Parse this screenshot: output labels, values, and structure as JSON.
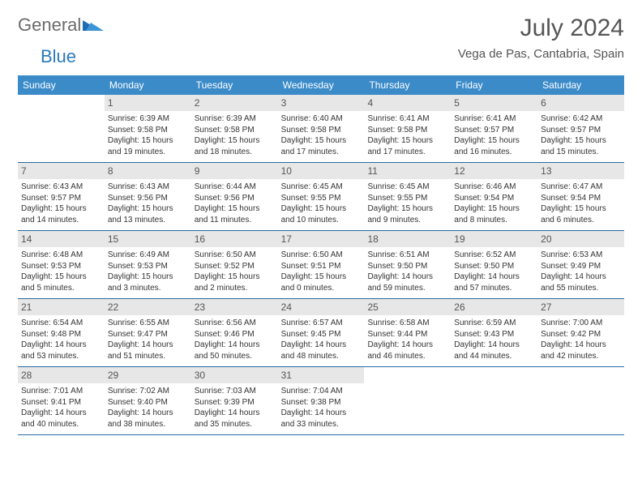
{
  "logo": {
    "text1": "General",
    "text2": "Blue"
  },
  "title": "July 2024",
  "location": "Vega de Pas, Cantabria, Spain",
  "colors": {
    "header_bg": "#3b8bc9",
    "daynum_bg": "#e7e7e7",
    "week_border": "#2a6aa0",
    "text": "#333333",
    "title_text": "#555555"
  },
  "weekdays": [
    "Sunday",
    "Monday",
    "Tuesday",
    "Wednesday",
    "Thursday",
    "Friday",
    "Saturday"
  ],
  "weeks": [
    [
      {
        "n": "",
        "lines": [
          "",
          "",
          "",
          ""
        ]
      },
      {
        "n": "1",
        "lines": [
          "Sunrise: 6:39 AM",
          "Sunset: 9:58 PM",
          "Daylight: 15 hours",
          "and 19 minutes."
        ]
      },
      {
        "n": "2",
        "lines": [
          "Sunrise: 6:39 AM",
          "Sunset: 9:58 PM",
          "Daylight: 15 hours",
          "and 18 minutes."
        ]
      },
      {
        "n": "3",
        "lines": [
          "Sunrise: 6:40 AM",
          "Sunset: 9:58 PM",
          "Daylight: 15 hours",
          "and 17 minutes."
        ]
      },
      {
        "n": "4",
        "lines": [
          "Sunrise: 6:41 AM",
          "Sunset: 9:58 PM",
          "Daylight: 15 hours",
          "and 17 minutes."
        ]
      },
      {
        "n": "5",
        "lines": [
          "Sunrise: 6:41 AM",
          "Sunset: 9:57 PM",
          "Daylight: 15 hours",
          "and 16 minutes."
        ]
      },
      {
        "n": "6",
        "lines": [
          "Sunrise: 6:42 AM",
          "Sunset: 9:57 PM",
          "Daylight: 15 hours",
          "and 15 minutes."
        ]
      }
    ],
    [
      {
        "n": "7",
        "lines": [
          "Sunrise: 6:43 AM",
          "Sunset: 9:57 PM",
          "Daylight: 15 hours",
          "and 14 minutes."
        ]
      },
      {
        "n": "8",
        "lines": [
          "Sunrise: 6:43 AM",
          "Sunset: 9:56 PM",
          "Daylight: 15 hours",
          "and 13 minutes."
        ]
      },
      {
        "n": "9",
        "lines": [
          "Sunrise: 6:44 AM",
          "Sunset: 9:56 PM",
          "Daylight: 15 hours",
          "and 11 minutes."
        ]
      },
      {
        "n": "10",
        "lines": [
          "Sunrise: 6:45 AM",
          "Sunset: 9:55 PM",
          "Daylight: 15 hours",
          "and 10 minutes."
        ]
      },
      {
        "n": "11",
        "lines": [
          "Sunrise: 6:45 AM",
          "Sunset: 9:55 PM",
          "Daylight: 15 hours",
          "and 9 minutes."
        ]
      },
      {
        "n": "12",
        "lines": [
          "Sunrise: 6:46 AM",
          "Sunset: 9:54 PM",
          "Daylight: 15 hours",
          "and 8 minutes."
        ]
      },
      {
        "n": "13",
        "lines": [
          "Sunrise: 6:47 AM",
          "Sunset: 9:54 PM",
          "Daylight: 15 hours",
          "and 6 minutes."
        ]
      }
    ],
    [
      {
        "n": "14",
        "lines": [
          "Sunrise: 6:48 AM",
          "Sunset: 9:53 PM",
          "Daylight: 15 hours",
          "and 5 minutes."
        ]
      },
      {
        "n": "15",
        "lines": [
          "Sunrise: 6:49 AM",
          "Sunset: 9:53 PM",
          "Daylight: 15 hours",
          "and 3 minutes."
        ]
      },
      {
        "n": "16",
        "lines": [
          "Sunrise: 6:50 AM",
          "Sunset: 9:52 PM",
          "Daylight: 15 hours",
          "and 2 minutes."
        ]
      },
      {
        "n": "17",
        "lines": [
          "Sunrise: 6:50 AM",
          "Sunset: 9:51 PM",
          "Daylight: 15 hours",
          "and 0 minutes."
        ]
      },
      {
        "n": "18",
        "lines": [
          "Sunrise: 6:51 AM",
          "Sunset: 9:50 PM",
          "Daylight: 14 hours",
          "and 59 minutes."
        ]
      },
      {
        "n": "19",
        "lines": [
          "Sunrise: 6:52 AM",
          "Sunset: 9:50 PM",
          "Daylight: 14 hours",
          "and 57 minutes."
        ]
      },
      {
        "n": "20",
        "lines": [
          "Sunrise: 6:53 AM",
          "Sunset: 9:49 PM",
          "Daylight: 14 hours",
          "and 55 minutes."
        ]
      }
    ],
    [
      {
        "n": "21",
        "lines": [
          "Sunrise: 6:54 AM",
          "Sunset: 9:48 PM",
          "Daylight: 14 hours",
          "and 53 minutes."
        ]
      },
      {
        "n": "22",
        "lines": [
          "Sunrise: 6:55 AM",
          "Sunset: 9:47 PM",
          "Daylight: 14 hours",
          "and 51 minutes."
        ]
      },
      {
        "n": "23",
        "lines": [
          "Sunrise: 6:56 AM",
          "Sunset: 9:46 PM",
          "Daylight: 14 hours",
          "and 50 minutes."
        ]
      },
      {
        "n": "24",
        "lines": [
          "Sunrise: 6:57 AM",
          "Sunset: 9:45 PM",
          "Daylight: 14 hours",
          "and 48 minutes."
        ]
      },
      {
        "n": "25",
        "lines": [
          "Sunrise: 6:58 AM",
          "Sunset: 9:44 PM",
          "Daylight: 14 hours",
          "and 46 minutes."
        ]
      },
      {
        "n": "26",
        "lines": [
          "Sunrise: 6:59 AM",
          "Sunset: 9:43 PM",
          "Daylight: 14 hours",
          "and 44 minutes."
        ]
      },
      {
        "n": "27",
        "lines": [
          "Sunrise: 7:00 AM",
          "Sunset: 9:42 PM",
          "Daylight: 14 hours",
          "and 42 minutes."
        ]
      }
    ],
    [
      {
        "n": "28",
        "lines": [
          "Sunrise: 7:01 AM",
          "Sunset: 9:41 PM",
          "Daylight: 14 hours",
          "and 40 minutes."
        ]
      },
      {
        "n": "29",
        "lines": [
          "Sunrise: 7:02 AM",
          "Sunset: 9:40 PM",
          "Daylight: 14 hours",
          "and 38 minutes."
        ]
      },
      {
        "n": "30",
        "lines": [
          "Sunrise: 7:03 AM",
          "Sunset: 9:39 PM",
          "Daylight: 14 hours",
          "and 35 minutes."
        ]
      },
      {
        "n": "31",
        "lines": [
          "Sunrise: 7:04 AM",
          "Sunset: 9:38 PM",
          "Daylight: 14 hours",
          "and 33 minutes."
        ]
      },
      {
        "n": "",
        "lines": [
          "",
          "",
          "",
          ""
        ]
      },
      {
        "n": "",
        "lines": [
          "",
          "",
          "",
          ""
        ]
      },
      {
        "n": "",
        "lines": [
          "",
          "",
          "",
          ""
        ]
      }
    ]
  ]
}
